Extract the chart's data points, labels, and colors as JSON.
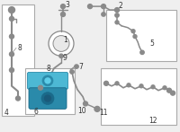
{
  "bg_color": "#efefef",
  "line_color": "#8a8a8a",
  "part_color": "#8a8a8a",
  "highlight_color": "#4db8d4",
  "highlight_color2": "#2a8aaa",
  "highlight_color3": "#1a6a8a",
  "box_border": "#aaaaaa",
  "box_bg": "#ffffff",
  "label_color": "#333333",
  "label_size": 5.5
}
